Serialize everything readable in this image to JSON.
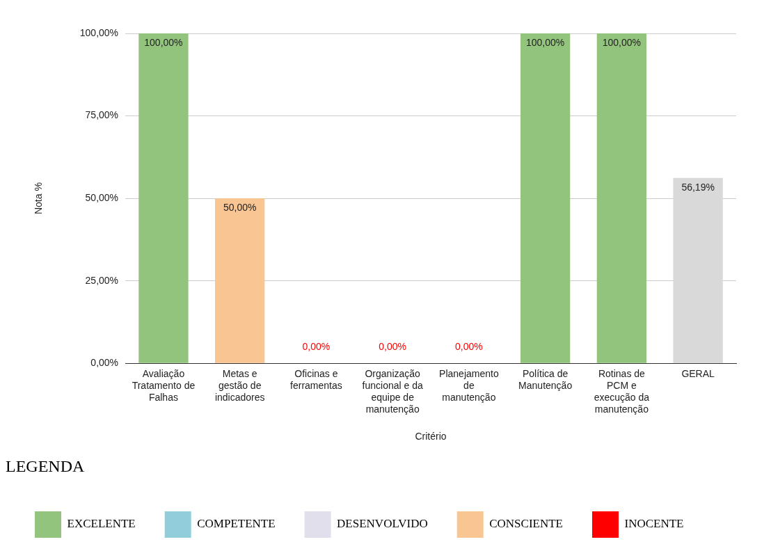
{
  "chart_data": {
    "type": "bar",
    "stacked": true,
    "xlabel": "Critério",
    "ylabel": "Nota %",
    "legend_title": "LEGENDA",
    "legend": "bottom",
    "grid": "y",
    "categories": [
      "Avaliação Tratamento de Falhas",
      "Metas e gestão de indicadores",
      "Oficinas e ferramentas",
      "Organização funcional e da equipe de manutenção",
      "Planejamento de manutenção",
      "Política de Manutenção",
      "Rotinas de PCM e execução da manutenção",
      "GERAL"
    ],
    "ylim": [
      0,
      100
    ],
    "yticks": [
      {
        "value": 0,
        "label": "0,00%"
      },
      {
        "value": 25,
        "label": "25,00%"
      },
      {
        "value": 50,
        "label": "50,00%"
      },
      {
        "value": 75,
        "label": "75,00%"
      },
      {
        "value": 100,
        "label": "100,00%"
      }
    ],
    "series": [
      {
        "name": "EXCELENTE",
        "color": "#93c47d",
        "values": [
          100,
          null,
          null,
          null,
          null,
          100,
          100,
          null
        ],
        "value_labels": [
          "100,00%",
          null,
          null,
          null,
          null,
          "100,00%",
          "100,00%",
          null
        ]
      },
      {
        "name": "COMPETENTE",
        "color": "#92cddc",
        "values": [
          null,
          null,
          null,
          null,
          null,
          null,
          null,
          null
        ]
      },
      {
        "name": "DESENVOLVIDO",
        "color": "#e1dfec",
        "values": [
          null,
          null,
          null,
          null,
          null,
          null,
          null,
          null
        ]
      },
      {
        "name": "CONSCIENTE",
        "color": "#f9c593",
        "values": [
          null,
          50,
          null,
          null,
          null,
          null,
          null,
          null
        ],
        "value_labels": [
          null,
          "50,00%",
          null,
          null,
          null,
          null,
          null,
          null
        ]
      },
      {
        "name": "INOCENTE",
        "color": "#ff0000",
        "values": [
          null,
          null,
          0,
          0,
          0,
          null,
          null,
          null
        ],
        "value_labels": [
          null,
          null,
          "0,00%",
          "0,00%",
          "0,00%",
          null,
          null,
          null
        ]
      },
      {
        "color": "#d9d9d9",
        "values": [
          null,
          null,
          null,
          null,
          null,
          null,
          null,
          56.19
        ],
        "value_labels": [
          null,
          null,
          null,
          null,
          null,
          null,
          null,
          "56,19%"
        ]
      }
    ]
  }
}
